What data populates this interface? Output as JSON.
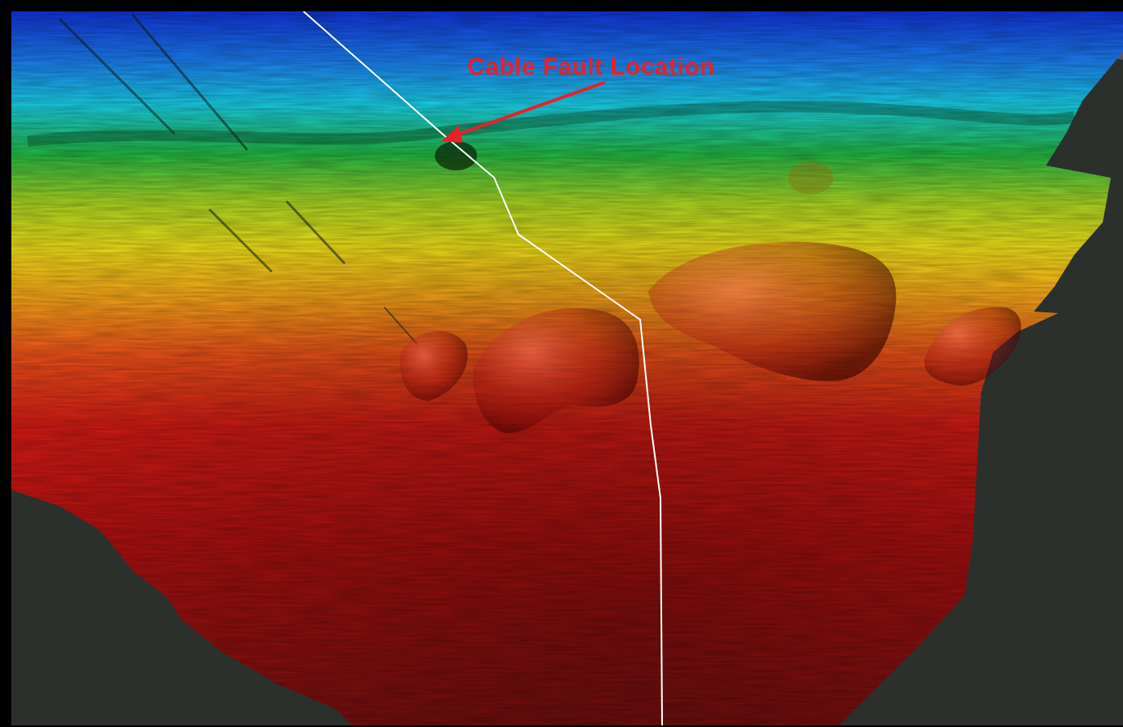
{
  "map": {
    "annotation": {
      "text": "Cable Fault Location",
      "color": "#e8202a"
    },
    "colors": {
      "deep": "#1038d8",
      "shallow_red": "#c81010",
      "cable_route": "#ffffff",
      "land": "#2a2f2c"
    }
  }
}
